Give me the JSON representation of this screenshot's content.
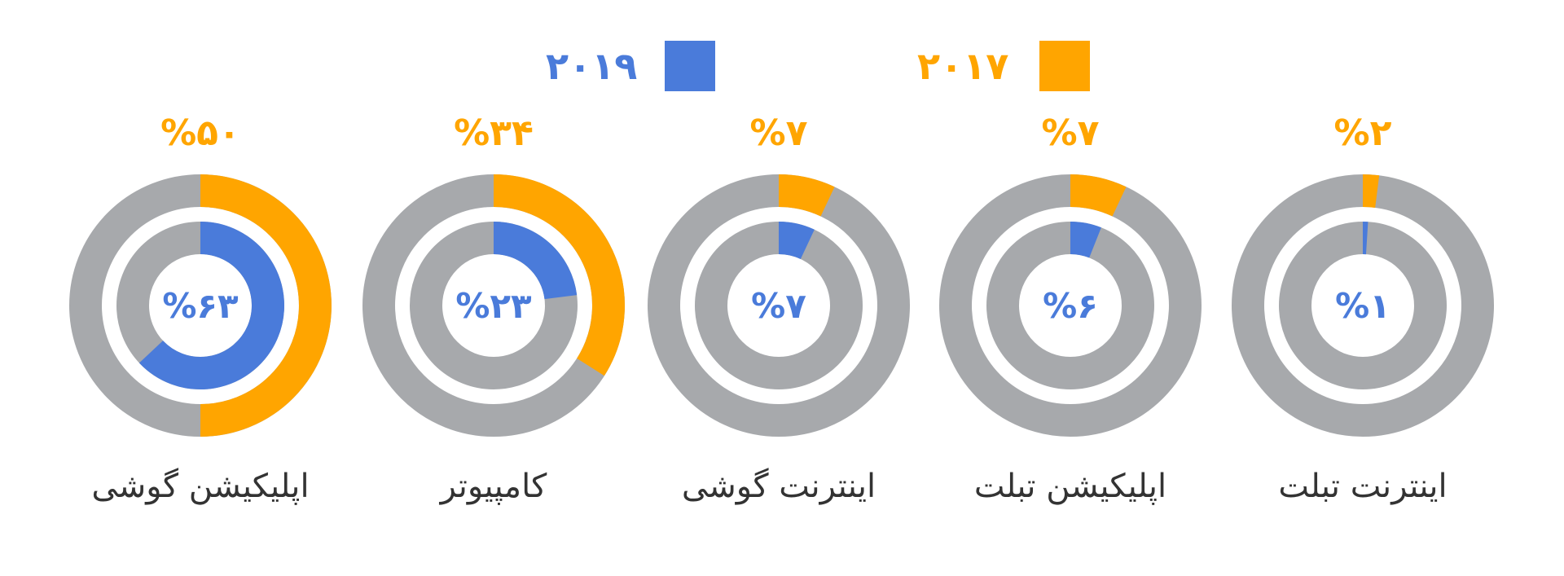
{
  "colors": {
    "y2017": "#FFA500",
    "y2019": "#4A7BDA",
    "track": "#A7A9AC"
  },
  "legend": [
    {
      "label": "۲۰۱۷",
      "color": "#FFA500"
    },
    {
      "label": "۲۰۱۹",
      "color": "#4A7BDA"
    }
  ],
  "chart_data": {
    "type": "pie",
    "subtype": "concentric-donut",
    "series": [
      {
        "name": "۲۰۱۷",
        "ring": "outer",
        "values": [
          50,
          34,
          7,
          7,
          2
        ],
        "labels": [
          "%۵۰",
          "%۳۴",
          "%۷",
          "%۷",
          "%۲"
        ]
      },
      {
        "name": "۲۰۱۹",
        "ring": "inner",
        "values": [
          63,
          23,
          7,
          6,
          1
        ],
        "labels": [
          "%۶۳",
          "%۲۳",
          "%۷",
          "%۶",
          "%۱"
        ]
      }
    ],
    "categories": [
      "اپلیکیشن گوشی",
      "کامپیوتر",
      "اینترنت گوشی",
      "اپلیکیشن تبلت",
      "اینترنت تبلت"
    ]
  }
}
